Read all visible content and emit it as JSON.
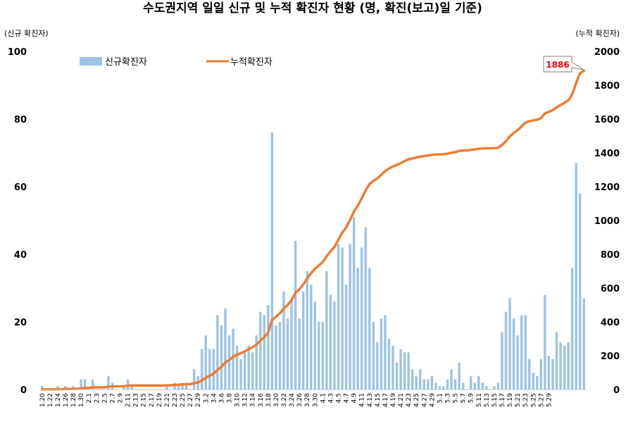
{
  "chart_data": {
    "type": "bar+line",
    "title": "수도권지역 일일 신규 및 누적 확진자 현황 (명, 확진(보고)일 기준)",
    "ylabel_left": "(신규 확진자)",
    "ylabel_right": "(누적 확진자)",
    "y_left_ticks": [
      "0",
      "20",
      "40",
      "60",
      "80",
      "100"
    ],
    "y_right_ticks": [
      "0",
      "200",
      "400",
      "600",
      "800",
      "1000",
      "1200",
      "1400",
      "1600",
      "1800",
      "2000"
    ],
    "ylim_left": [
      0,
      100
    ],
    "ylim_right": [
      0,
      2000
    ],
    "legend": {
      "bar_label": "신규확진자",
      "line_label": "누적확진자",
      "placement": "top-left"
    },
    "callout": {
      "text": "1886",
      "color": "#ff0000"
    },
    "colors": {
      "bar": "#9dc3e6",
      "line": "#ed7d31",
      "grid": "#d9d9d9"
    },
    "grid": false,
    "x_tick_labels": [
      "1.20",
      "1.22",
      "1.24",
      "1.26",
      "1.28",
      "1.30",
      "2.1",
      "2.3",
      "2.5",
      "2.7",
      "2.9",
      "2.11",
      "2.13",
      "2.15",
      "2.17",
      "2.19",
      "2.21",
      "2.23",
      "2.25",
      "2.27",
      "2.29",
      "3.2",
      "3.4",
      "3.6",
      "3.8",
      "3.10",
      "3.12",
      "3.14",
      "3.16",
      "3.18",
      "3.20",
      "3.22",
      "3.24",
      "3.26",
      "3.28",
      "3.30",
      "4.1",
      "4.3",
      "4.5",
      "4.7",
      "4.9",
      "4.11",
      "4.13",
      "4.15",
      "4.17",
      "4.19",
      "4.21",
      "4.23",
      "4.25",
      "4.27",
      "4.29",
      "5.1",
      "5.3",
      "5.5",
      "5.7",
      "5.9",
      "5.11",
      "5.13",
      "5.15",
      "5.17",
      "5.19",
      "5.21",
      "5.23",
      "5.25",
      "5.27",
      "5.29"
    ],
    "series": [
      {
        "name": "신규확진자",
        "kind": "bar",
        "axis": "left",
        "values": [
          1,
          0,
          0,
          0,
          1,
          0,
          1,
          0,
          1,
          0,
          3,
          3,
          0,
          3,
          0,
          0,
          0,
          4,
          2,
          0,
          0,
          1,
          3,
          1,
          0,
          0,
          0,
          0,
          0,
          0,
          0,
          0,
          1,
          0,
          2,
          1,
          2,
          2,
          0,
          6,
          4,
          12,
          16,
          12,
          12,
          22,
          19,
          24,
          16,
          18,
          13,
          9,
          11,
          13,
          11,
          16,
          23,
          22,
          25,
          76,
          19,
          20,
          29,
          21,
          27,
          44,
          21,
          29,
          35,
          31,
          26,
          20,
          20,
          35,
          28,
          26,
          43,
          42,
          31,
          43,
          51,
          36,
          42,
          48,
          36,
          20,
          14,
          21,
          22,
          15,
          13,
          8,
          12,
          11,
          11,
          6,
          4,
          6,
          3,
          3,
          4,
          2,
          1,
          1,
          3,
          6,
          3,
          8,
          2,
          0,
          4,
          2,
          4,
          2,
          1,
          0,
          1,
          2,
          17,
          23,
          27,
          21,
          16,
          22,
          22,
          9,
          5,
          4,
          9,
          28,
          10,
          9,
          17,
          14,
          13,
          14,
          36,
          67,
          58,
          27
        ]
      },
      {
        "name": "누적확진자",
        "kind": "line",
        "axis": "right",
        "values": [
          1,
          1,
          1,
          1,
          2,
          2,
          3,
          3,
          4,
          4,
          7,
          10,
          10,
          13,
          13,
          13,
          13,
          17,
          19,
          19,
          19,
          20,
          23,
          24,
          24,
          24,
          24,
          24,
          24,
          24,
          24,
          24,
          25,
          25,
          27,
          28,
          30,
          32,
          32,
          38,
          42,
          54,
          70,
          82,
          94,
          116,
          135,
          159,
          175,
          193,
          206,
          215,
          226,
          239,
          250,
          266,
          289,
          311,
          336,
          412,
          431,
          451,
          480,
          501,
          528,
          572,
          593,
          622,
          657,
          688,
          714,
          734,
          754,
          789,
          817,
          843,
          886,
          928,
          959,
          1002,
          1053,
          1089,
          1131,
          1179,
          1215,
          1235,
          1249,
          1270,
          1292,
          1307,
          1320,
          1328,
          1340,
          1351,
          1362,
          1368,
          1372,
          1378,
          1381,
          1384,
          1388,
          1390,
          1391,
          1392,
          1395,
          1401,
          1404,
          1412,
          1414,
          1414,
          1418,
          1420,
          1424,
          1426,
          1427,
          1427,
          1428,
          1430,
          1447,
          1470,
          1497,
          1518,
          1534,
          1556,
          1578,
          1587,
          1592,
          1596,
          1605,
          1633,
          1643,
          1652,
          1669,
          1683,
          1696,
          1710,
          1746,
          1813,
          1871,
          1886
        ]
      }
    ]
  }
}
